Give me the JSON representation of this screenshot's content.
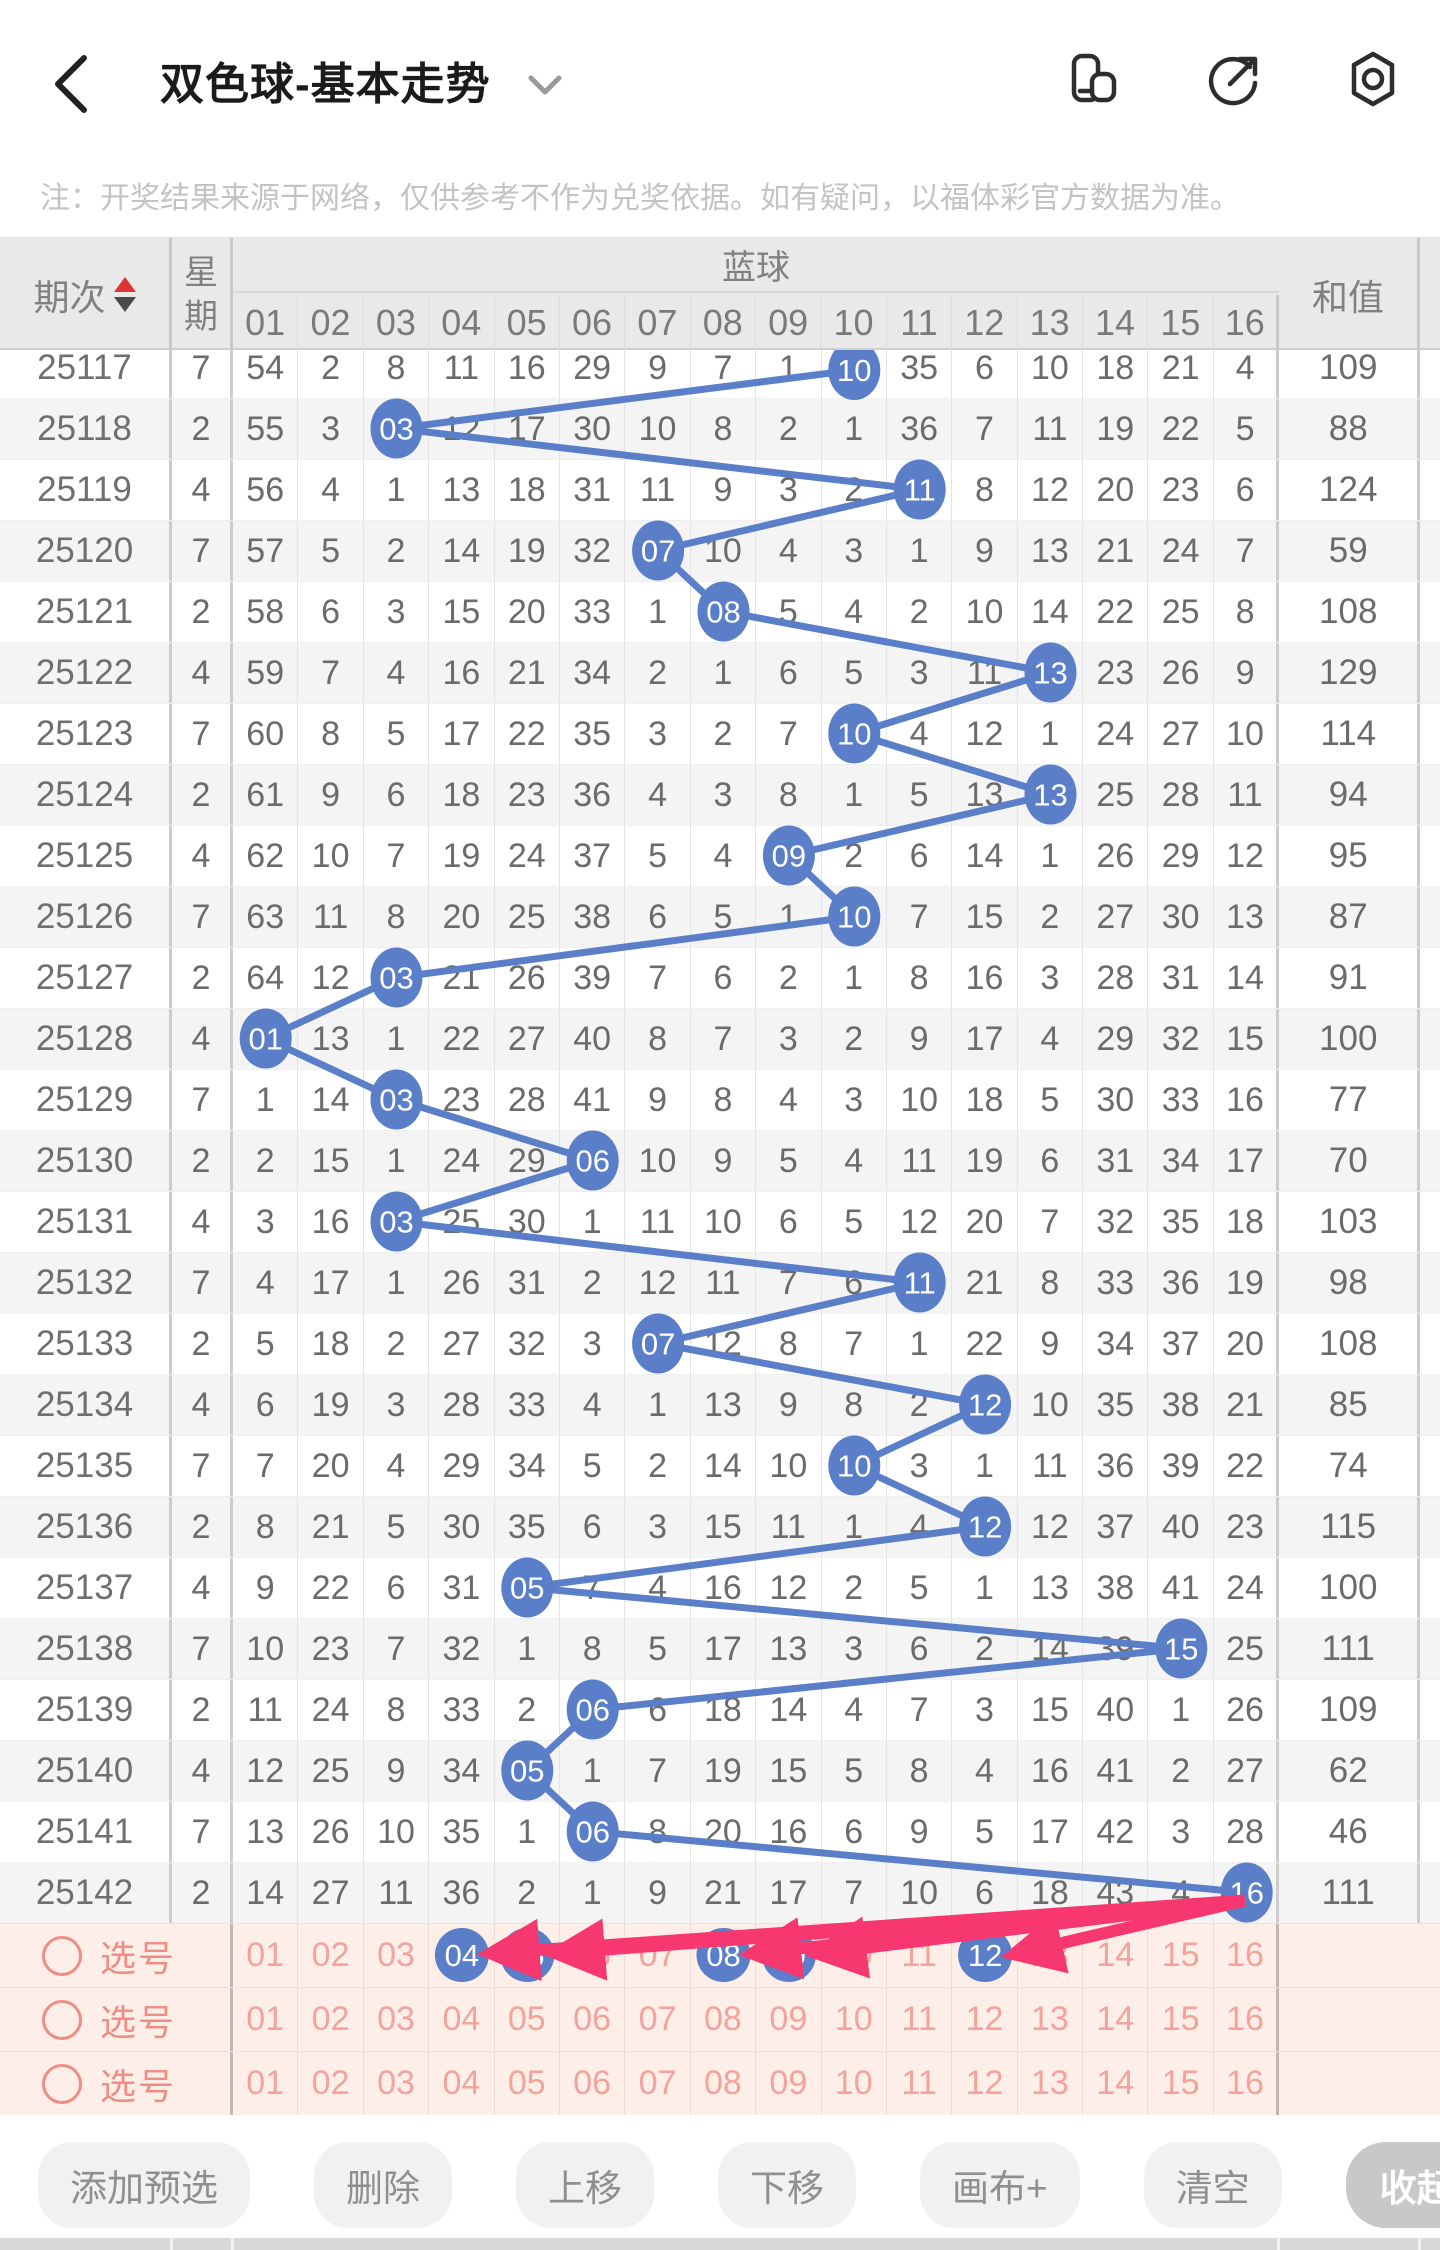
{
  "topbar": {
    "title": "双色球-基本走势",
    "icons": [
      "float-window-icon",
      "share-icon",
      "nut-icon"
    ]
  },
  "notice": "注：开奖结果来源于网络，仅供参考不作为兑奖依据。如有疑问，以福体彩官方数据为准。",
  "table": {
    "headers": {
      "period": "期次",
      "week_top": "星",
      "week_bottom": "期",
      "blue_zone": "蓝球",
      "sum": "和值"
    },
    "ball_columns": [
      "01",
      "02",
      "03",
      "04",
      "05",
      "06",
      "07",
      "08",
      "09",
      "10",
      "11",
      "12",
      "13",
      "14",
      "15",
      "16"
    ],
    "rows": [
      {
        "period": "25117",
        "week": "7",
        "cells": [
          54,
          2,
          8,
          11,
          16,
          29,
          9,
          7,
          1,
          "10",
          35,
          6,
          10,
          18,
          21,
          4
        ],
        "drawn": 10,
        "sum": "109"
      },
      {
        "period": "25118",
        "week": "2",
        "cells": [
          55,
          3,
          "03",
          12,
          17,
          30,
          10,
          8,
          2,
          1,
          36,
          7,
          11,
          19,
          22,
          5
        ],
        "drawn": 3,
        "sum": "88"
      },
      {
        "period": "25119",
        "week": "4",
        "cells": [
          56,
          4,
          1,
          13,
          18,
          31,
          11,
          9,
          3,
          2,
          "11",
          8,
          12,
          20,
          23,
          6
        ],
        "drawn": 11,
        "sum": "124"
      },
      {
        "period": "25120",
        "week": "7",
        "cells": [
          57,
          5,
          2,
          14,
          19,
          32,
          "07",
          10,
          4,
          3,
          1,
          9,
          13,
          21,
          24,
          7
        ],
        "drawn": 7,
        "sum": "59"
      },
      {
        "period": "25121",
        "week": "2",
        "cells": [
          58,
          6,
          3,
          15,
          20,
          33,
          1,
          "08",
          5,
          4,
          2,
          10,
          14,
          22,
          25,
          8
        ],
        "drawn": 8,
        "sum": "108"
      },
      {
        "period": "25122",
        "week": "4",
        "cells": [
          59,
          7,
          4,
          16,
          21,
          34,
          2,
          1,
          6,
          5,
          3,
          11,
          "13",
          23,
          26,
          9
        ],
        "drawn": 13,
        "sum": "129"
      },
      {
        "period": "25123",
        "week": "7",
        "cells": [
          60,
          8,
          5,
          17,
          22,
          35,
          3,
          2,
          7,
          "10",
          4,
          12,
          1,
          24,
          27,
          10
        ],
        "drawn": 10,
        "sum": "114"
      },
      {
        "period": "25124",
        "week": "2",
        "cells": [
          61,
          9,
          6,
          18,
          23,
          36,
          4,
          3,
          8,
          1,
          5,
          13,
          "13",
          25,
          28,
          11
        ],
        "drawn": 13,
        "sum": "94"
      },
      {
        "period": "25125",
        "week": "4",
        "cells": [
          62,
          10,
          7,
          19,
          24,
          37,
          5,
          4,
          "09",
          2,
          6,
          14,
          1,
          26,
          29,
          12
        ],
        "drawn": 9,
        "sum": "95"
      },
      {
        "period": "25126",
        "week": "7",
        "cells": [
          63,
          11,
          8,
          20,
          25,
          38,
          6,
          5,
          1,
          "10",
          7,
          15,
          2,
          27,
          30,
          13
        ],
        "drawn": 10,
        "sum": "87"
      },
      {
        "period": "25127",
        "week": "2",
        "cells": [
          64,
          12,
          "03",
          21,
          26,
          39,
          7,
          6,
          2,
          1,
          8,
          16,
          3,
          28,
          31,
          14
        ],
        "drawn": 3,
        "sum": "91"
      },
      {
        "period": "25128",
        "week": "4",
        "cells": [
          "01",
          13,
          1,
          22,
          27,
          40,
          8,
          7,
          3,
          2,
          9,
          17,
          4,
          29,
          32,
          15
        ],
        "drawn": 1,
        "sum": "100"
      },
      {
        "period": "25129",
        "week": "7",
        "cells": [
          1,
          14,
          "03",
          23,
          28,
          41,
          9,
          8,
          4,
          3,
          10,
          18,
          5,
          30,
          33,
          16
        ],
        "drawn": 3,
        "sum": "77"
      },
      {
        "period": "25130",
        "week": "2",
        "cells": [
          2,
          15,
          1,
          24,
          29,
          "06",
          10,
          9,
          5,
          4,
          11,
          19,
          6,
          31,
          34,
          17
        ],
        "drawn": 6,
        "sum": "70"
      },
      {
        "period": "25131",
        "week": "4",
        "cells": [
          3,
          16,
          "03",
          25,
          30,
          1,
          11,
          10,
          6,
          5,
          12,
          20,
          7,
          32,
          35,
          18
        ],
        "drawn": 3,
        "sum": "103"
      },
      {
        "period": "25132",
        "week": "7",
        "cells": [
          4,
          17,
          1,
          26,
          31,
          2,
          12,
          11,
          7,
          6,
          "11",
          21,
          8,
          33,
          36,
          19
        ],
        "drawn": 11,
        "sum": "98"
      },
      {
        "period": "25133",
        "week": "2",
        "cells": [
          5,
          18,
          2,
          27,
          32,
          3,
          "07",
          12,
          8,
          7,
          1,
          22,
          9,
          34,
          37,
          20
        ],
        "drawn": 7,
        "sum": "108"
      },
      {
        "period": "25134",
        "week": "4",
        "cells": [
          6,
          19,
          3,
          28,
          33,
          4,
          1,
          13,
          9,
          8,
          2,
          "12",
          10,
          35,
          38,
          21
        ],
        "drawn": 12,
        "sum": "85"
      },
      {
        "period": "25135",
        "week": "7",
        "cells": [
          7,
          20,
          4,
          29,
          34,
          5,
          2,
          14,
          10,
          "10",
          3,
          1,
          11,
          36,
          39,
          22
        ],
        "drawn": 10,
        "sum": "74"
      },
      {
        "period": "25136",
        "week": "2",
        "cells": [
          8,
          21,
          5,
          30,
          35,
          6,
          3,
          15,
          11,
          1,
          4,
          "12",
          12,
          37,
          40,
          23
        ],
        "drawn": 12,
        "sum": "115"
      },
      {
        "period": "25137",
        "week": "4",
        "cells": [
          9,
          22,
          6,
          31,
          "05",
          7,
          4,
          16,
          12,
          2,
          5,
          1,
          13,
          38,
          41,
          24
        ],
        "drawn": 5,
        "sum": "100"
      },
      {
        "period": "25138",
        "week": "7",
        "cells": [
          10,
          23,
          7,
          32,
          1,
          8,
          5,
          17,
          13,
          3,
          6,
          2,
          14,
          39,
          "15",
          25
        ],
        "drawn": 15,
        "sum": "111"
      },
      {
        "period": "25139",
        "week": "2",
        "cells": [
          11,
          24,
          8,
          33,
          2,
          "06",
          6,
          18,
          14,
          4,
          7,
          3,
          15,
          40,
          1,
          26
        ],
        "drawn": 6,
        "sum": "109"
      },
      {
        "period": "25140",
        "week": "4",
        "cells": [
          12,
          25,
          9,
          34,
          "05",
          1,
          7,
          19,
          15,
          5,
          8,
          4,
          16,
          41,
          2,
          27
        ],
        "drawn": 5,
        "sum": "62"
      },
      {
        "period": "25141",
        "week": "7",
        "cells": [
          13,
          26,
          10,
          35,
          1,
          "06",
          8,
          20,
          16,
          6,
          9,
          5,
          17,
          42,
          3,
          28
        ],
        "drawn": 6,
        "sum": "46"
      },
      {
        "period": "25142",
        "week": "2",
        "cells": [
          14,
          27,
          11,
          36,
          2,
          1,
          9,
          21,
          17,
          7,
          10,
          6,
          18,
          43,
          4,
          "16"
        ],
        "drawn": 16,
        "sum": "111"
      }
    ]
  },
  "pick_rows": [
    {
      "label": "选号",
      "numbers": [
        "01",
        "02",
        "03",
        "04",
        "05",
        "06",
        "07",
        "08",
        "09",
        "10",
        "11",
        "12",
        "13",
        "14",
        "15",
        "16"
      ],
      "selected": [
        4,
        5,
        8,
        9,
        12
      ]
    },
    {
      "label": "选号",
      "numbers": [
        "01",
        "02",
        "03",
        "04",
        "05",
        "06",
        "07",
        "08",
        "09",
        "10",
        "11",
        "12",
        "13",
        "14",
        "15",
        "16"
      ],
      "selected": []
    },
    {
      "label": "选号",
      "numbers": [
        "01",
        "02",
        "03",
        "04",
        "05",
        "06",
        "07",
        "08",
        "09",
        "10",
        "11",
        "12",
        "13",
        "14",
        "15",
        "16"
      ],
      "selected": []
    }
  ],
  "arrows": {
    "from_period": "25142",
    "from_ball": "16",
    "target_balls": [
      4,
      5,
      8,
      9,
      12
    ]
  },
  "toolbar": {
    "buttons": [
      "添加预选",
      "删除",
      "上移",
      "下移",
      "画布+",
      "清空"
    ],
    "collapse_label": "收起"
  },
  "colors": {
    "ball_blue": "#5b7ec8",
    "arrow_pink": "#f7376f",
    "pick_bg": "#fdeee7",
    "pick_text": "#f3a39c",
    "pick_accent": "#ee8d85",
    "sort_up_red": "#e03434"
  }
}
